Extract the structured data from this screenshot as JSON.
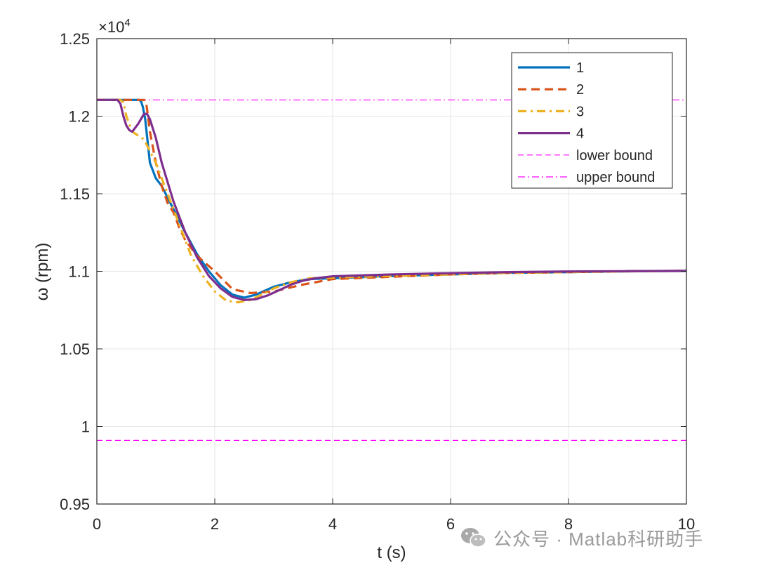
{
  "chart_data": {
    "type": "line",
    "title": "",
    "xlabel": "t (s)",
    "ylabel": "ω (rpm)",
    "y_exponent_label": "×10",
    "y_exponent_power": "4",
    "xlim": [
      0,
      10
    ],
    "ylim": [
      0.95,
      1.25
    ],
    "x_ticks": [
      0,
      2,
      4,
      6,
      8,
      10
    ],
    "x_tick_labels": [
      "0",
      "2",
      "4",
      "6",
      "8",
      "10"
    ],
    "y_ticks": [
      0.95,
      1.0,
      1.05,
      1.1,
      1.15,
      1.2,
      1.25
    ],
    "y_tick_labels": [
      "0.95",
      "1",
      "1.05",
      "1.1",
      "1.15",
      "1.2",
      "1.25"
    ],
    "grid": true,
    "legend_position": "top-right",
    "series": [
      {
        "name": "1",
        "color": "#0072BD",
        "style": "solid",
        "width": 3.2,
        "x": [
          0,
          0.4,
          0.6,
          0.72,
          0.75,
          0.78,
          0.82,
          0.9,
          1.0,
          1.1,
          1.3,
          1.5,
          1.7,
          1.9,
          2.1,
          2.3,
          2.5,
          2.7,
          3.0,
          3.3,
          3.6,
          4.0,
          5.0,
          6.0,
          7.0,
          8.0,
          9.0,
          10.0
        ],
        "y": [
          1.2105,
          1.2105,
          1.2105,
          1.2105,
          1.2095,
          1.206,
          1.198,
          1.17,
          1.16,
          1.155,
          1.14,
          1.125,
          1.111,
          1.1,
          1.091,
          1.085,
          1.083,
          1.085,
          1.09,
          1.093,
          1.095,
          1.0955,
          1.097,
          1.098,
          1.099,
          1.0995,
          1.1,
          1.1003
        ]
      },
      {
        "name": "2",
        "color": "#D95319",
        "style": "dashed",
        "width": 3.2,
        "x": [
          0,
          0.4,
          0.7,
          0.8,
          0.83,
          0.85,
          0.9,
          1.0,
          1.1,
          1.2,
          1.3,
          1.4,
          1.5,
          1.7,
          2.0,
          2.3,
          2.6,
          3.0,
          3.5,
          4.0,
          5.0,
          6.0,
          7.0,
          8.0,
          9.0,
          10.0
        ],
        "y": [
          1.2105,
          1.2105,
          1.2105,
          1.2105,
          1.21,
          1.205,
          1.19,
          1.17,
          1.155,
          1.144,
          1.138,
          1.128,
          1.12,
          1.11,
          1.1,
          1.0885,
          1.086,
          1.087,
          1.0915,
          1.095,
          1.0965,
          1.098,
          1.099,
          1.0995,
          1.1,
          1.1003
        ]
      },
      {
        "name": "3",
        "color": "#EDB120",
        "style": "dashdot",
        "width": 3.2,
        "x": [
          0,
          0.4,
          0.45,
          0.5,
          0.6,
          0.8,
          1.0,
          1.2,
          1.4,
          1.6,
          1.8,
          2.0,
          2.2,
          2.4,
          2.6,
          2.8,
          3.0,
          3.3,
          3.6,
          4.0,
          5.0,
          6.0,
          7.0,
          8.0,
          9.0,
          10.0
        ],
        "y": [
          1.2105,
          1.2105,
          1.209,
          1.2,
          1.19,
          1.185,
          1.17,
          1.15,
          1.13,
          1.11,
          1.097,
          1.087,
          1.081,
          1.08,
          1.0815,
          1.085,
          1.089,
          1.093,
          1.0955,
          1.096,
          1.097,
          1.098,
          1.099,
          1.0995,
          1.1,
          1.1003
        ]
      },
      {
        "name": "4",
        "color": "#7E2F8E",
        "style": "solid",
        "width": 3.2,
        "x": [
          0,
          0.35,
          0.4,
          0.45,
          0.5,
          0.55,
          0.6,
          0.7,
          0.8,
          0.85,
          0.9,
          1.0,
          1.1,
          1.3,
          1.5,
          1.7,
          1.9,
          2.1,
          2.3,
          2.5,
          2.7,
          2.9,
          3.1,
          3.3,
          3.5,
          3.7,
          4.0,
          5.0,
          6.0,
          7.0,
          8.0,
          9.0,
          10.0
        ],
        "y": [
          1.2105,
          1.2105,
          1.208,
          1.2,
          1.194,
          1.191,
          1.19,
          1.195,
          1.2015,
          1.2015,
          1.198,
          1.186,
          1.17,
          1.145,
          1.125,
          1.109,
          1.097,
          1.089,
          1.0835,
          1.0815,
          1.082,
          1.0845,
          1.088,
          1.0915,
          1.094,
          1.0955,
          1.0968,
          1.098,
          1.0988,
          1.0995,
          1.0999,
          1.1001,
          1.1003
        ]
      },
      {
        "name": "lower bound",
        "color": "#FF00FF",
        "style": "dashed-thin",
        "width": 1.2,
        "x": [
          0,
          10
        ],
        "y": [
          0.991,
          0.991
        ]
      },
      {
        "name": "upper bound",
        "color": "#FF00FF",
        "style": "dashdot-thin",
        "width": 1.2,
        "x": [
          0,
          10
        ],
        "y": [
          1.2105,
          1.2105
        ]
      }
    ]
  },
  "watermark": {
    "text": "公众号 · Matlab科研助手",
    "icon": "wechat-icon"
  }
}
